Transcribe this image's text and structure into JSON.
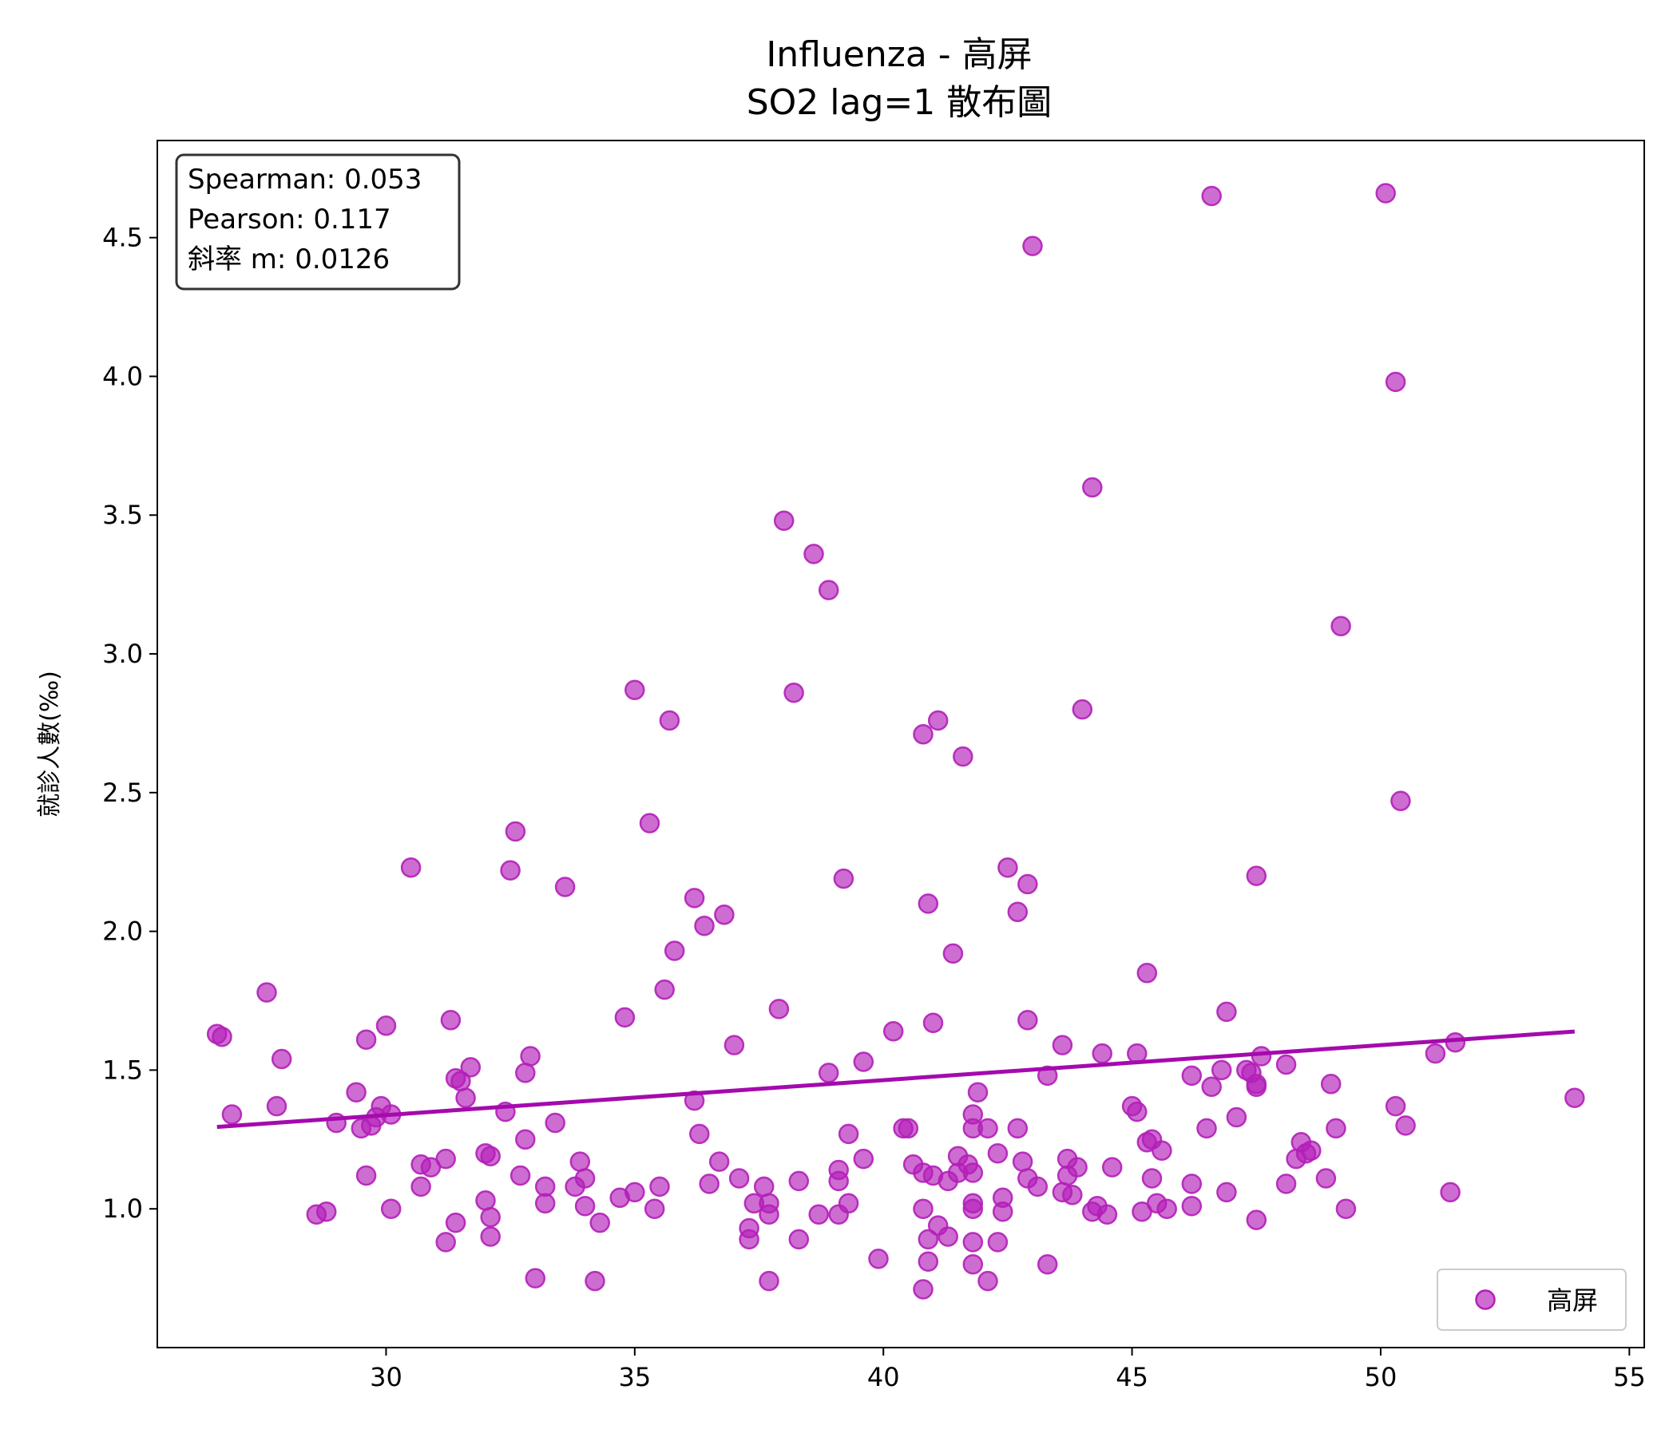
{
  "chart_data": {
    "type": "scatter",
    "title": "Influenza - 高屏",
    "subtitle": "SO2 lag=1 散布圖",
    "xlabel": "",
    "ylabel": "就診人數(‰)",
    "xlim": [
      25.4,
      55.3
    ],
    "ylim": [
      0.5,
      4.85
    ],
    "xticks": [
      30,
      35,
      40,
      45,
      50,
      55
    ],
    "yticks": [
      1.0,
      1.5,
      2.0,
      2.5,
      3.0,
      3.5,
      4.0,
      4.5
    ],
    "xtick_labels": [
      "30",
      "35",
      "40",
      "45",
      "50",
      "55"
    ],
    "ytick_labels": [
      "1.0",
      "1.5",
      "2.0",
      "2.5",
      "3.0",
      "3.5",
      "4.0",
      "4.5"
    ],
    "grid": false,
    "legend_position": "bottom-right",
    "stats": {
      "spearman": "Spearman: 0.053",
      "pearson": "Pearson: 0.117",
      "slope": "斜率 m: 0.0126"
    },
    "series": [
      {
        "name": "高屏",
        "color": "#b31fb8",
        "points": [
          [
            26.6,
            1.63
          ],
          [
            26.7,
            1.62
          ],
          [
            26.9,
            1.34
          ],
          [
            27.6,
            1.78
          ],
          [
            27.8,
            1.37
          ],
          [
            27.9,
            1.54
          ],
          [
            28.6,
            0.98
          ],
          [
            28.8,
            0.99
          ],
          [
            29.0,
            1.31
          ],
          [
            29.4,
            1.42
          ],
          [
            29.5,
            1.29
          ],
          [
            29.6,
            1.61
          ],
          [
            29.6,
            1.12
          ],
          [
            29.7,
            1.3
          ],
          [
            29.8,
            1.33
          ],
          [
            29.9,
            1.37
          ],
          [
            30.0,
            1.66
          ],
          [
            30.1,
            1.0
          ],
          [
            30.1,
            1.34
          ],
          [
            30.5,
            2.23
          ],
          [
            30.7,
            1.16
          ],
          [
            30.7,
            1.08
          ],
          [
            30.9,
            1.15
          ],
          [
            31.2,
            1.18
          ],
          [
            31.2,
            0.88
          ],
          [
            31.3,
            1.68
          ],
          [
            31.4,
            1.47
          ],
          [
            31.4,
            0.95
          ],
          [
            31.5,
            1.46
          ],
          [
            31.6,
            1.4
          ],
          [
            31.7,
            1.51
          ],
          [
            32.0,
            1.03
          ],
          [
            32.0,
            1.2
          ],
          [
            32.1,
            1.19
          ],
          [
            32.1,
            0.97
          ],
          [
            32.1,
            0.9
          ],
          [
            32.4,
            1.35
          ],
          [
            32.5,
            2.22
          ],
          [
            32.6,
            2.36
          ],
          [
            32.7,
            1.12
          ],
          [
            32.8,
            1.49
          ],
          [
            32.8,
            1.25
          ],
          [
            32.9,
            1.55
          ],
          [
            33.0,
            0.75
          ],
          [
            33.2,
            1.08
          ],
          [
            33.2,
            1.02
          ],
          [
            33.4,
            1.31
          ],
          [
            33.6,
            2.16
          ],
          [
            33.8,
            1.08
          ],
          [
            33.9,
            1.17
          ],
          [
            34.0,
            1.11
          ],
          [
            34.0,
            1.01
          ],
          [
            34.2,
            0.74
          ],
          [
            34.3,
            0.95
          ],
          [
            34.7,
            1.04
          ],
          [
            34.8,
            1.69
          ],
          [
            35.0,
            2.87
          ],
          [
            35.0,
            1.06
          ],
          [
            35.3,
            2.39
          ],
          [
            35.4,
            1.0
          ],
          [
            35.5,
            1.08
          ],
          [
            35.6,
            1.79
          ],
          [
            35.7,
            2.76
          ],
          [
            35.8,
            1.93
          ],
          [
            36.2,
            2.12
          ],
          [
            36.2,
            1.39
          ],
          [
            36.3,
            1.27
          ],
          [
            36.4,
            2.02
          ],
          [
            36.5,
            1.09
          ],
          [
            36.7,
            1.17
          ],
          [
            36.8,
            2.06
          ],
          [
            37.0,
            1.59
          ],
          [
            37.1,
            1.11
          ],
          [
            37.3,
            0.93
          ],
          [
            37.3,
            0.89
          ],
          [
            37.4,
            1.02
          ],
          [
            37.6,
            1.08
          ],
          [
            37.7,
            0.98
          ],
          [
            37.7,
            1.02
          ],
          [
            37.7,
            0.74
          ],
          [
            37.9,
            1.72
          ],
          [
            38.0,
            3.48
          ],
          [
            38.2,
            2.86
          ],
          [
            38.3,
            1.1
          ],
          [
            38.3,
            0.89
          ],
          [
            38.6,
            3.36
          ],
          [
            38.7,
            0.98
          ],
          [
            38.9,
            1.49
          ],
          [
            38.9,
            3.23
          ],
          [
            39.1,
            1.14
          ],
          [
            39.1,
            1.1
          ],
          [
            39.1,
            0.98
          ],
          [
            39.2,
            2.19
          ],
          [
            39.3,
            1.02
          ],
          [
            39.3,
            1.27
          ],
          [
            39.6,
            1.53
          ],
          [
            39.6,
            1.18
          ],
          [
            39.9,
            0.82
          ],
          [
            40.2,
            1.64
          ],
          [
            40.4,
            1.29
          ],
          [
            40.5,
            1.29
          ],
          [
            40.6,
            1.16
          ],
          [
            40.8,
            2.71
          ],
          [
            40.8,
            1.13
          ],
          [
            40.8,
            1.0
          ],
          [
            40.8,
            0.71
          ],
          [
            40.9,
            2.1
          ],
          [
            40.9,
            0.89
          ],
          [
            40.9,
            0.81
          ],
          [
            41.0,
            1.12
          ],
          [
            41.0,
            1.67
          ],
          [
            41.1,
            2.76
          ],
          [
            41.1,
            0.94
          ],
          [
            41.3,
            1.1
          ],
          [
            41.3,
            0.9
          ],
          [
            41.4,
            1.92
          ],
          [
            41.5,
            1.19
          ],
          [
            41.5,
            1.13
          ],
          [
            41.6,
            2.63
          ],
          [
            41.7,
            1.16
          ],
          [
            41.8,
            1.34
          ],
          [
            41.8,
            1.29
          ],
          [
            41.8,
            1.13
          ],
          [
            41.8,
            1.02
          ],
          [
            41.8,
            1.0
          ],
          [
            41.8,
            0.88
          ],
          [
            41.8,
            0.8
          ],
          [
            41.9,
            1.42
          ],
          [
            42.1,
            1.29
          ],
          [
            42.1,
            0.74
          ],
          [
            42.3,
            1.2
          ],
          [
            42.3,
            0.88
          ],
          [
            42.4,
            1.04
          ],
          [
            42.4,
            0.99
          ],
          [
            42.5,
            2.23
          ],
          [
            42.7,
            2.07
          ],
          [
            42.7,
            1.29
          ],
          [
            42.8,
            1.17
          ],
          [
            42.9,
            2.17
          ],
          [
            42.9,
            1.11
          ],
          [
            42.9,
            1.68
          ],
          [
            43.0,
            4.47
          ],
          [
            43.1,
            1.08
          ],
          [
            43.3,
            1.48
          ],
          [
            43.3,
            0.8
          ],
          [
            43.6,
            1.59
          ],
          [
            43.6,
            1.06
          ],
          [
            43.7,
            1.18
          ],
          [
            43.7,
            1.12
          ],
          [
            43.8,
            1.05
          ],
          [
            43.9,
            1.15
          ],
          [
            44.0,
            2.8
          ],
          [
            44.2,
            3.6
          ],
          [
            44.2,
            0.99
          ],
          [
            44.3,
            1.01
          ],
          [
            44.4,
            1.56
          ],
          [
            44.5,
            0.98
          ],
          [
            44.6,
            1.15
          ],
          [
            45.0,
            1.37
          ],
          [
            45.1,
            1.56
          ],
          [
            45.1,
            1.35
          ],
          [
            45.2,
            0.99
          ],
          [
            45.3,
            1.85
          ],
          [
            45.3,
            1.24
          ],
          [
            45.4,
            1.25
          ],
          [
            45.4,
            1.11
          ],
          [
            45.5,
            1.02
          ],
          [
            45.6,
            1.21
          ],
          [
            45.7,
            1.0
          ],
          [
            46.2,
            1.48
          ],
          [
            46.2,
            1.09
          ],
          [
            46.2,
            1.01
          ],
          [
            46.5,
            1.29
          ],
          [
            46.6,
            4.65
          ],
          [
            46.6,
            1.44
          ],
          [
            46.8,
            1.5
          ],
          [
            46.9,
            1.71
          ],
          [
            46.9,
            1.06
          ],
          [
            47.1,
            1.33
          ],
          [
            47.3,
            1.5
          ],
          [
            47.4,
            1.49
          ],
          [
            47.5,
            1.45
          ],
          [
            47.5,
            1.44
          ],
          [
            47.5,
            2.2
          ],
          [
            47.5,
            0.96
          ],
          [
            47.6,
            1.55
          ],
          [
            48.1,
            1.52
          ],
          [
            48.1,
            1.09
          ],
          [
            48.3,
            1.18
          ],
          [
            48.4,
            1.24
          ],
          [
            48.5,
            1.2
          ],
          [
            48.6,
            1.21
          ],
          [
            48.9,
            1.11
          ],
          [
            49.0,
            1.45
          ],
          [
            49.1,
            1.29
          ],
          [
            49.2,
            3.1
          ],
          [
            49.3,
            1.0
          ],
          [
            50.1,
            4.66
          ],
          [
            50.3,
            3.98
          ],
          [
            50.3,
            1.37
          ],
          [
            50.4,
            2.47
          ],
          [
            50.5,
            1.3
          ],
          [
            51.1,
            1.56
          ],
          [
            51.4,
            1.06
          ],
          [
            51.5,
            1.6
          ],
          [
            53.9,
            1.4
          ]
        ]
      }
    ],
    "regression_line": {
      "x": [
        26.6,
        53.9
      ],
      "y": [
        1.295,
        1.639
      ],
      "color": "#a40aad"
    }
  }
}
